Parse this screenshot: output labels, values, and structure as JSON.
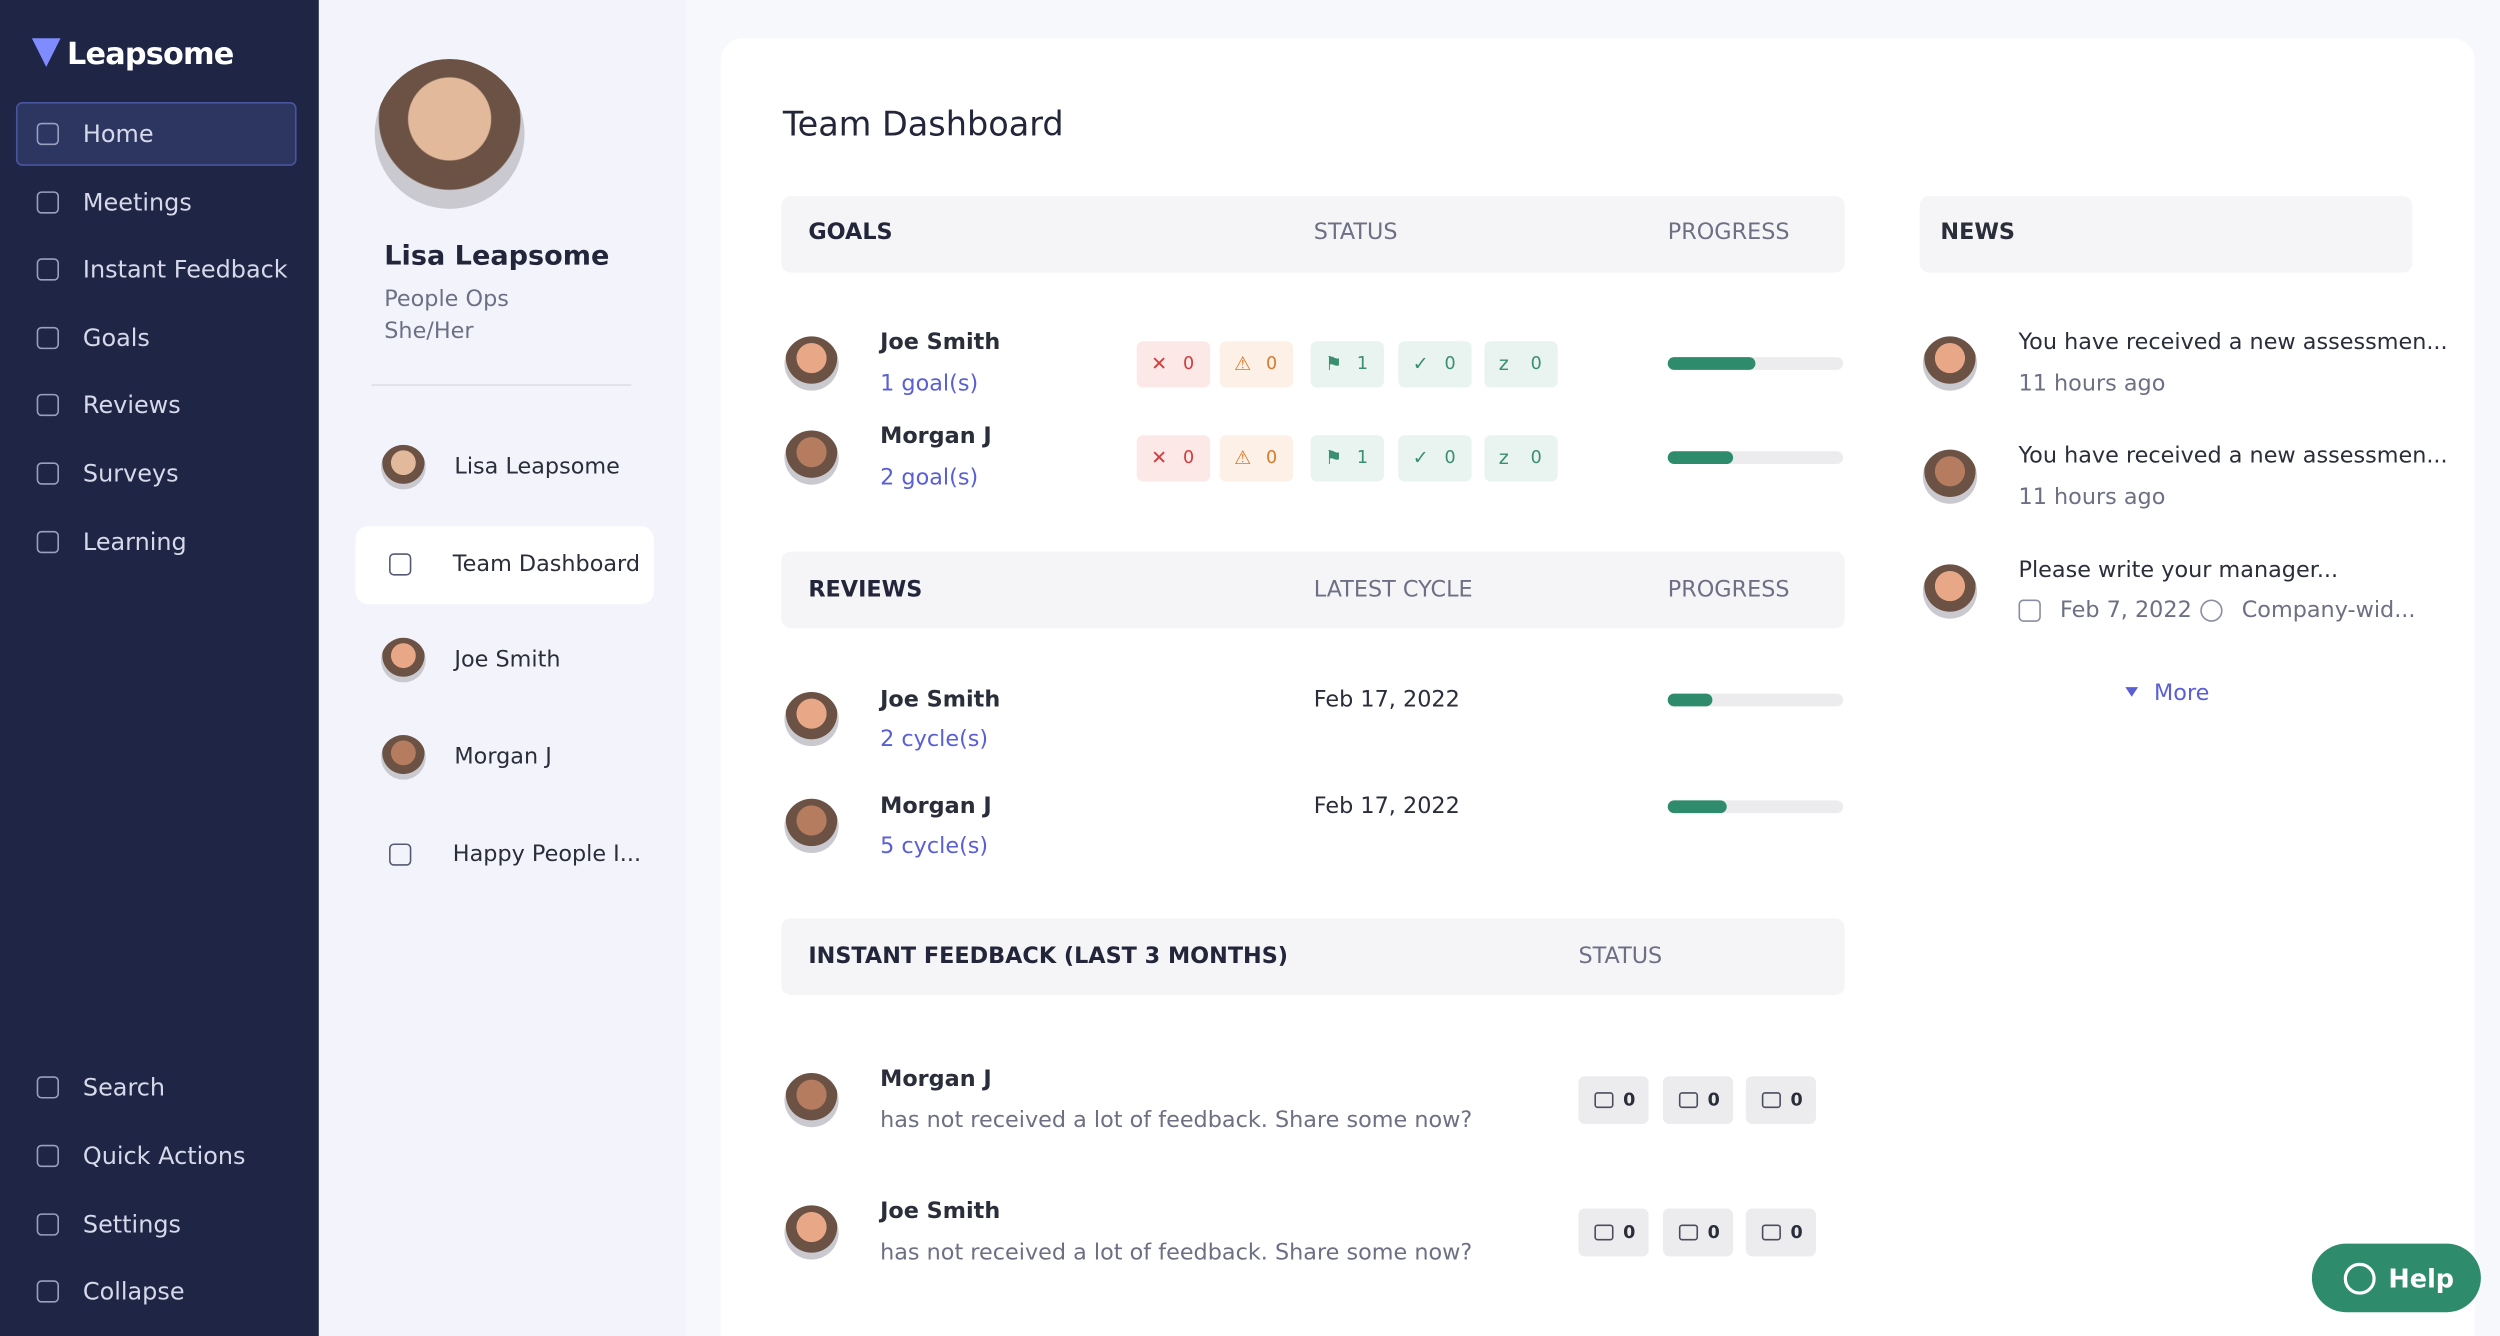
{
  "sidebar": {
    "brand": "Leapsome",
    "nav": [
      "Home",
      "Meetings",
      "Instant Feedback",
      "Goals",
      "Reviews",
      "Surveys",
      "Learning"
    ],
    "bottom": [
      "Search",
      "Quick Actions",
      "Settings",
      "Collapse"
    ]
  },
  "profile": {
    "name": "Lisa Leapsome",
    "role": "People Ops",
    "pronouns": "She/Her"
  },
  "team_list": [
    "Lisa Leapsome",
    "Team Dashboard",
    "Joe Smith",
    "Morgan J",
    "Happy People I..."
  ],
  "dashboard": {
    "title": "Team Dashboard",
    "goals": {
      "headers": [
        "GOALS",
        "STATUS",
        "PROGRESS"
      ],
      "rows": [
        {
          "name": "Joe Smith",
          "link": "1 goal(s)",
          "status": [
            0,
            0,
            1,
            0,
            0
          ],
          "progress": 50
        },
        {
          "name": "Morgan J",
          "link": "2 goal(s)",
          "status": [
            0,
            0,
            1,
            0,
            0
          ],
          "progress": 37
        }
      ]
    },
    "reviews": {
      "headers": [
        "REVIEWS",
        "LATEST CYCLE",
        "PROGRESS"
      ],
      "rows": [
        {
          "name": "Joe Smith",
          "link": "2 cycle(s)",
          "cycle": "Feb 17, 2022",
          "progress": 25
        },
        {
          "name": "Morgan J",
          "link": "5 cycle(s)",
          "cycle": "Feb 17, 2022",
          "progress": 34
        }
      ]
    },
    "feedback": {
      "headers": [
        "INSTANT FEEDBACK (LAST 3 MONTHS)",
        "STATUS"
      ],
      "rows": [
        {
          "name": "Morgan J",
          "text": "has not received a lot of feedback. Share some now?",
          "counts": [
            0,
            0,
            0
          ]
        },
        {
          "name": "Joe Smith",
          "text": "has not received a lot of feedback. Share some now?",
          "counts": [
            0,
            0,
            0
          ]
        }
      ]
    }
  },
  "news": {
    "title": "NEWS",
    "items": [
      {
        "text": "You have received a new assessmen...",
        "time": "11 hours ago"
      },
      {
        "text": "You have received a new assessmen...",
        "time": "11 hours ago"
      },
      {
        "text": "Please write your manager...",
        "date": "Feb 7, 2022",
        "scope": "Company-wid..."
      }
    ],
    "more": "More"
  },
  "help": "Help"
}
